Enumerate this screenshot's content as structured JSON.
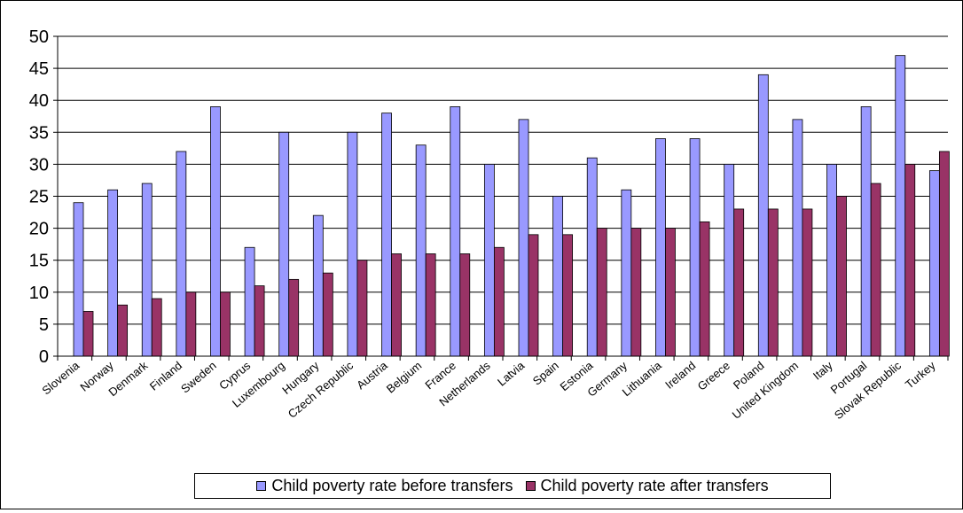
{
  "chart_data": {
    "type": "bar",
    "categories": [
      "Slovenia",
      "Norway",
      "Denmark",
      "Finland",
      "Sweden",
      "Cyprus",
      "Luxembourg",
      "Hungary",
      "Czech Republic",
      "Austria",
      "Belgium",
      "France",
      "Netherlands",
      "Latvia",
      "Spain",
      "Estonia",
      "Germany",
      "Lithuania",
      "Ireland",
      "Greece",
      "Poland",
      "United Kingdom",
      "Italy",
      "Portugal",
      "Slovak Republic",
      "Turkey"
    ],
    "series": [
      {
        "name": "Child poverty rate before transfers",
        "color": "#9999ff",
        "values": [
          24,
          26,
          27,
          32,
          39,
          17,
          35,
          22,
          35,
          38,
          33,
          39,
          30,
          37,
          25,
          31,
          26,
          34,
          34,
          30,
          44,
          37,
          30,
          39,
          47,
          29
        ]
      },
      {
        "name": "Child poverty rate after transfers",
        "color": "#993366",
        "values": [
          7,
          8,
          9,
          10,
          10,
          11,
          12,
          13,
          15,
          16,
          16,
          16,
          17,
          19,
          19,
          20,
          20,
          20,
          21,
          23,
          23,
          23,
          25,
          27,
          30,
          32
        ]
      }
    ],
    "yticks": [
      0,
      5,
      10,
      15,
      20,
      25,
      30,
      35,
      40,
      45,
      50
    ],
    "ylim": [
      0,
      50
    ],
    "grid": true,
    "legend_position": "bottom"
  }
}
